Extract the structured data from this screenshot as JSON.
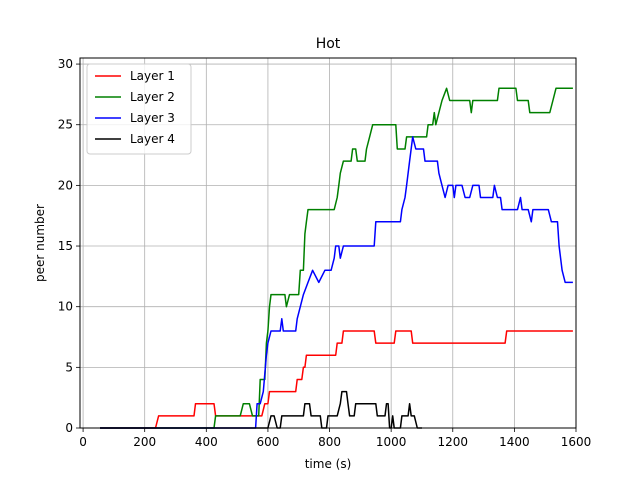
{
  "chart_data": {
    "type": "line",
    "title": "Hot",
    "xlabel": "time (s)",
    "ylabel": "peer number",
    "xlim": [
      -10,
      1600
    ],
    "ylim": [
      0,
      30.5
    ],
    "xticks": [
      0,
      200,
      400,
      600,
      800,
      1000,
      1200,
      1400,
      1600
    ],
    "yticks": [
      0,
      5,
      10,
      15,
      20,
      25,
      30
    ],
    "grid": true,
    "legend_position": "top-left",
    "series": [
      {
        "name": "Layer 1",
        "color": "#ff0000",
        "points": [
          [
            55,
            0
          ],
          [
            235,
            0
          ],
          [
            245,
            1
          ],
          [
            360,
            1
          ],
          [
            365,
            2
          ],
          [
            425,
            2
          ],
          [
            430,
            1
          ],
          [
            580,
            1
          ],
          [
            590,
            2
          ],
          [
            600,
            2
          ],
          [
            605,
            3
          ],
          [
            690,
            3
          ],
          [
            695,
            4
          ],
          [
            710,
            4
          ],
          [
            715,
            5
          ],
          [
            720,
            5
          ],
          [
            725,
            6
          ],
          [
            820,
            6
          ],
          [
            825,
            7
          ],
          [
            840,
            7
          ],
          [
            845,
            8
          ],
          [
            945,
            8
          ],
          [
            950,
            7
          ],
          [
            1010,
            7
          ],
          [
            1015,
            8
          ],
          [
            1065,
            8
          ],
          [
            1070,
            7
          ],
          [
            1370,
            7
          ],
          [
            1375,
            8
          ],
          [
            1590,
            8
          ]
        ]
      },
      {
        "name": "Layer 2",
        "color": "#008000",
        "points": [
          [
            55,
            0
          ],
          [
            425,
            0
          ],
          [
            430,
            1
          ],
          [
            510,
            1
          ],
          [
            520,
            2
          ],
          [
            540,
            2
          ],
          [
            550,
            1
          ],
          [
            570,
            1
          ],
          [
            575,
            4
          ],
          [
            590,
            4
          ],
          [
            595,
            7
          ],
          [
            600,
            8
          ],
          [
            605,
            10
          ],
          [
            610,
            11
          ],
          [
            655,
            11
          ],
          [
            660,
            10
          ],
          [
            670,
            11
          ],
          [
            700,
            11
          ],
          [
            705,
            13
          ],
          [
            715,
            13
          ],
          [
            720,
            16
          ],
          [
            725,
            17
          ],
          [
            730,
            18
          ],
          [
            815,
            18
          ],
          [
            825,
            19
          ],
          [
            830,
            20
          ],
          [
            835,
            21
          ],
          [
            845,
            22
          ],
          [
            870,
            22
          ],
          [
            875,
            23
          ],
          [
            885,
            23
          ],
          [
            890,
            22
          ],
          [
            915,
            22
          ],
          [
            920,
            23
          ],
          [
            930,
            24
          ],
          [
            940,
            25
          ],
          [
            1015,
            25
          ],
          [
            1020,
            23
          ],
          [
            1045,
            23
          ],
          [
            1050,
            24
          ],
          [
            1115,
            24
          ],
          [
            1120,
            25
          ],
          [
            1135,
            25
          ],
          [
            1140,
            26
          ],
          [
            1145,
            25
          ],
          [
            1155,
            26
          ],
          [
            1165,
            27
          ],
          [
            1180,
            28
          ],
          [
            1190,
            27
          ],
          [
            1255,
            27
          ],
          [
            1260,
            26
          ],
          [
            1265,
            27
          ],
          [
            1345,
            27
          ],
          [
            1350,
            28
          ],
          [
            1405,
            28
          ],
          [
            1410,
            27
          ],
          [
            1445,
            27
          ],
          [
            1450,
            26
          ],
          [
            1515,
            26
          ],
          [
            1525,
            27
          ],
          [
            1535,
            28
          ],
          [
            1590,
            28
          ]
        ]
      },
      {
        "name": "Layer 3",
        "color": "#0000ff",
        "points": [
          [
            55,
            0
          ],
          [
            560,
            0
          ],
          [
            565,
            2
          ],
          [
            575,
            2
          ],
          [
            585,
            3
          ],
          [
            595,
            6
          ],
          [
            600,
            7
          ],
          [
            610,
            8
          ],
          [
            640,
            8
          ],
          [
            645,
            9
          ],
          [
            650,
            8
          ],
          [
            690,
            8
          ],
          [
            695,
            9
          ],
          [
            705,
            10
          ],
          [
            715,
            11
          ],
          [
            730,
            12
          ],
          [
            745,
            13
          ],
          [
            765,
            12
          ],
          [
            785,
            13
          ],
          [
            805,
            13
          ],
          [
            815,
            14
          ],
          [
            820,
            15
          ],
          [
            830,
            15
          ],
          [
            835,
            14
          ],
          [
            845,
            15
          ],
          [
            945,
            15
          ],
          [
            950,
            17
          ],
          [
            1030,
            17
          ],
          [
            1035,
            18
          ],
          [
            1045,
            19
          ],
          [
            1050,
            20
          ],
          [
            1060,
            22
          ],
          [
            1070,
            24
          ],
          [
            1080,
            23
          ],
          [
            1105,
            23
          ],
          [
            1110,
            22
          ],
          [
            1150,
            22
          ],
          [
            1155,
            21
          ],
          [
            1165,
            20
          ],
          [
            1175,
            19
          ],
          [
            1185,
            20
          ],
          [
            1200,
            20
          ],
          [
            1205,
            19
          ],
          [
            1210,
            20
          ],
          [
            1230,
            20
          ],
          [
            1240,
            19
          ],
          [
            1255,
            19
          ],
          [
            1265,
            20
          ],
          [
            1285,
            20
          ],
          [
            1290,
            19
          ],
          [
            1330,
            19
          ],
          [
            1335,
            20
          ],
          [
            1345,
            19
          ],
          [
            1355,
            19
          ],
          [
            1360,
            18
          ],
          [
            1410,
            18
          ],
          [
            1420,
            19
          ],
          [
            1425,
            18
          ],
          [
            1445,
            18
          ],
          [
            1455,
            17
          ],
          [
            1460,
            18
          ],
          [
            1510,
            18
          ],
          [
            1520,
            17
          ],
          [
            1540,
            17
          ],
          [
            1545,
            15
          ],
          [
            1555,
            13
          ],
          [
            1565,
            12
          ],
          [
            1590,
            12
          ]
        ]
      },
      {
        "name": "Layer 4",
        "color": "#000000",
        "points": [
          [
            55,
            0
          ],
          [
            600,
            0
          ],
          [
            610,
            1
          ],
          [
            620,
            1
          ],
          [
            630,
            0
          ],
          [
            640,
            0
          ],
          [
            645,
            1
          ],
          [
            715,
            1
          ],
          [
            720,
            2
          ],
          [
            735,
            2
          ],
          [
            740,
            1
          ],
          [
            770,
            1
          ],
          [
            775,
            0
          ],
          [
            790,
            0
          ],
          [
            795,
            1
          ],
          [
            825,
            1
          ],
          [
            835,
            2
          ],
          [
            840,
            3
          ],
          [
            855,
            3
          ],
          [
            860,
            2
          ],
          [
            865,
            1
          ],
          [
            880,
            1
          ],
          [
            885,
            2
          ],
          [
            950,
            2
          ],
          [
            955,
            1
          ],
          [
            980,
            1
          ],
          [
            985,
            2
          ],
          [
            990,
            2
          ],
          [
            995,
            0
          ],
          [
            1000,
            0
          ],
          [
            1005,
            1
          ],
          [
            1010,
            0
          ],
          [
            1030,
            0
          ],
          [
            1035,
            1
          ],
          [
            1055,
            1
          ],
          [
            1060,
            2
          ],
          [
            1065,
            1
          ],
          [
            1075,
            1
          ],
          [
            1085,
            0
          ],
          [
            1100,
            0
          ]
        ]
      }
    ]
  }
}
